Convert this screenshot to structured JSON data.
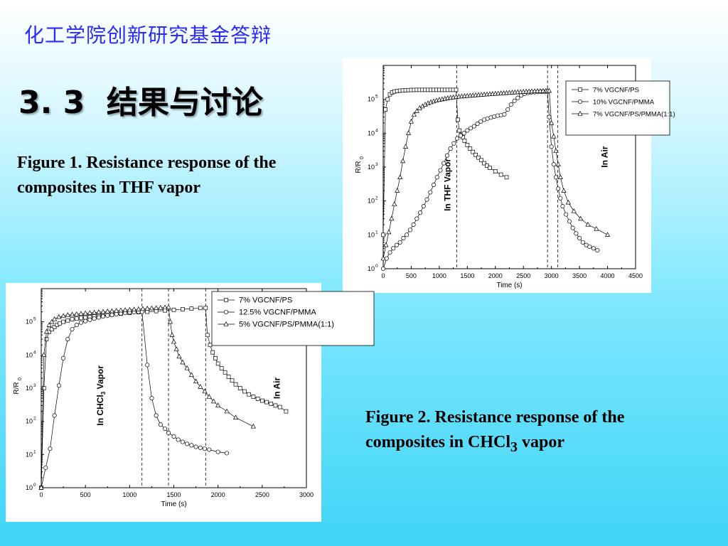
{
  "slide": {
    "header": "化工学院创新研究基金答辩",
    "section_number": "3. 3",
    "section_title": "结果与讨论"
  },
  "captions": {
    "figure1_prefix": "Figure 1. Resistance response of the composites in THF vapor",
    "figure2_prefix": "Figure 2. Resistance response of the composites in CHCl",
    "figure2_sub": "3",
    "figure2_suffix": " vapor"
  },
  "chart_data": [
    {
      "type": "line",
      "xlabel": "Time (s)",
      "ylabel_main": "R/R",
      "ylabel_sub": "0",
      "yscale": "log",
      "xlim": [
        0,
        4500
      ],
      "ylim": [
        1,
        1000000
      ],
      "xticks": [
        0,
        500,
        1000,
        1500,
        2000,
        2500,
        3000,
        3500,
        4000,
        4500
      ],
      "yticks": [
        1,
        10,
        100,
        1000,
        10000,
        100000
      ],
      "ytick_exps": [
        "0",
        "1",
        "2",
        "3",
        "4",
        "5"
      ],
      "vlines": [
        1310,
        2930,
        3110
      ],
      "annotations": [
        {
          "text": "In THF Vapor",
          "x": 1200,
          "y": 300
        },
        {
          "text": "In Air",
          "x": 4000,
          "y": 2000
        }
      ],
      "legend_position": "top-right",
      "series": [
        {
          "name": "7% VGCNF/PS",
          "marker": "square",
          "x": [
            0,
            40,
            80,
            120,
            160,
            200,
            250,
            300,
            350,
            400,
            450,
            500,
            550,
            600,
            650,
            700,
            750,
            800,
            850,
            900,
            950,
            1000,
            1050,
            1100,
            1150,
            1200,
            1250,
            1300,
            1330,
            1360,
            1390,
            1420,
            1450,
            1500,
            1550,
            1600,
            1650,
            1700,
            1750,
            1800,
            1850,
            1900,
            2000,
            2100,
            2200
          ],
          "y": [
            10,
            50000,
            100000,
            140000,
            160000,
            170000,
            175000,
            180000,
            182000,
            185000,
            187000,
            188000,
            189000,
            190000,
            190000,
            190000,
            190000,
            190000,
            190000,
            190000,
            190000,
            190000,
            190000,
            190000,
            190000,
            190000,
            190000,
            190000,
            25000,
            12000,
            9000,
            7500,
            6000,
            4500,
            3500,
            2800,
            2300,
            1900,
            1600,
            1300,
            1100,
            950,
            750,
            600,
            500
          ]
        },
        {
          "name": "10% VGCNF/PMMA",
          "marker": "circle",
          "x": [
            0,
            60,
            120,
            180,
            240,
            300,
            360,
            420,
            480,
            540,
            600,
            660,
            720,
            780,
            840,
            900,
            960,
            1020,
            1080,
            1140,
            1200,
            1260,
            1320,
            1380,
            1440,
            1500,
            1560,
            1620,
            1680,
            1740,
            1800,
            1860,
            1920,
            1980,
            2040,
            2100,
            2160,
            2220,
            2280,
            2340,
            2400,
            2460,
            2520,
            2580,
            2640,
            2700,
            2760,
            2820,
            2880,
            2930,
            2960,
            3000,
            3040,
            3080,
            3120,
            3160,
            3200,
            3260,
            3320,
            3380,
            3440,
            3500,
            3560,
            3620,
            3680,
            3750,
            3820
          ],
          "y": [
            1,
            2,
            3,
            4,
            5,
            6,
            8,
            10,
            14,
            20,
            30,
            45,
            70,
            110,
            180,
            300,
            500,
            800,
            1300,
            2200,
            3500,
            5000,
            7000,
            8500,
            10000,
            12000,
            14000,
            16000,
            19000,
            22000,
            25000,
            27000,
            29000,
            31000,
            33000,
            34000,
            36000,
            50000,
            70000,
            90000,
            110000,
            130000,
            145000,
            155000,
            160000,
            163000,
            165000,
            166000,
            167000,
            168000,
            30000,
            4000,
            1200,
            500,
            230,
            120,
            70,
            40,
            25,
            16,
            11,
            8,
            6,
            5,
            4.5,
            4,
            3.5
          ]
        },
        {
          "name": "7% VGCNF/PS/PMMA(1:1)",
          "marker": "triangle",
          "x": [
            0,
            50,
            100,
            150,
            200,
            250,
            300,
            350,
            400,
            450,
            500,
            550,
            600,
            650,
            700,
            750,
            800,
            850,
            900,
            950,
            1000,
            1050,
            1100,
            1150,
            1200,
            1250,
            1300,
            1350,
            1400,
            1450,
            1500,
            1550,
            1600,
            1650,
            1700,
            1750,
            1800,
            1850,
            1900,
            1950,
            2000,
            2050,
            2100,
            2150,
            2200,
            2250,
            2300,
            2350,
            2400,
            2450,
            2500,
            2550,
            2600,
            2650,
            2700,
            2750,
            2800,
            2850,
            2900,
            2930,
            2960,
            3000,
            3040,
            3080,
            3120,
            3160,
            3220,
            3300,
            3400,
            3520,
            3650,
            3800,
            4000
          ],
          "y": [
            2,
            5,
            12,
            30,
            80,
            200,
            500,
            1500,
            4000,
            10000,
            22000,
            35000,
            45000,
            55000,
            62000,
            70000,
            76000,
            82000,
            87000,
            92000,
            96000,
            100000,
            104000,
            108000,
            111000,
            114000,
            117000,
            120000,
            122000,
            124000,
            126000,
            128000,
            130000,
            132000,
            134000,
            136000,
            138000,
            140000,
            142000,
            144000,
            146000,
            148000,
            150000,
            152000,
            154000,
            156000,
            158000,
            160000,
            162000,
            164000,
            166000,
            168000,
            170000,
            172000,
            173000,
            174000,
            175000,
            176000,
            177000,
            178000,
            178000,
            20000,
            8000,
            3000,
            1200,
            500,
            200,
            90,
            50,
            30,
            20,
            15,
            10
          ]
        }
      ]
    },
    {
      "type": "line",
      "xlabel": "Time (s)",
      "ylabel_main": "R/R",
      "ylabel_sub": "0",
      "yscale": "log",
      "xlim": [
        0,
        3000
      ],
      "ylim": [
        1,
        1000000
      ],
      "xticks": [
        0,
        500,
        1000,
        1500,
        2000,
        2500,
        3000
      ],
      "yticks": [
        1,
        10,
        100,
        1000,
        10000,
        100000
      ],
      "ytick_exps": [
        "0",
        "1",
        "2",
        "3",
        "4",
        "5"
      ],
      "vlines": [
        1140,
        1440,
        1860
      ],
      "annotations": [
        {
          "text": "In CHCl",
          "sub": "3",
          "after": " Vapor",
          "x": 700,
          "y": 600
        },
        {
          "text": "In Air",
          "x": 2700,
          "y": 1000
        }
      ],
      "legend_position": "top-right",
      "series": [
        {
          "name": "7% VGCNF/PS",
          "marker": "square",
          "x": [
            0,
            30,
            60,
            90,
            120,
            150,
            180,
            210,
            250,
            300,
            350,
            400,
            450,
            500,
            550,
            600,
            650,
            700,
            800,
            900,
            1000,
            1100,
            1200,
            1300,
            1400,
            1500,
            1600,
            1700,
            1800,
            1860,
            1880,
            1910,
            1940,
            1970,
            2000,
            2040,
            2080,
            2120,
            2160,
            2200,
            2250,
            2300,
            2350,
            2400,
            2450,
            2500,
            2550,
            2600,
            2650,
            2700,
            2770
          ],
          "y": [
            1,
            1000,
            30000,
            50000,
            60000,
            70000,
            80000,
            90000,
            100000,
            110000,
            120000,
            125000,
            130000,
            135000,
            140000,
            145000,
            150000,
            155000,
            165000,
            175000,
            185000,
            195000,
            200000,
            210000,
            220000,
            230000,
            240000,
            250000,
            260000,
            260000,
            40000,
            20000,
            12000,
            8000,
            5500,
            4000,
            3000,
            2200,
            1700,
            1300,
            1000,
            800,
            650,
            550,
            480,
            420,
            380,
            340,
            300,
            270,
            200
          ]
        },
        {
          "name": "12.5% VGCNF/PMMA",
          "marker": "circle",
          "x": [
            0,
            50,
            100,
            150,
            200,
            250,
            300,
            350,
            400,
            450,
            500,
            550,
            600,
            650,
            700,
            750,
            800,
            850,
            900,
            950,
            1000,
            1050,
            1100,
            1140,
            1200,
            1250,
            1300,
            1350,
            1400,
            1440,
            1500,
            1550,
            1600,
            1650,
            1700,
            1750,
            1800,
            1850,
            1900,
            2000,
            2100
          ],
          "y": [
            1,
            4,
            15,
            150,
            1200,
            8000,
            30000,
            60000,
            80000,
            95000,
            105000,
            115000,
            125000,
            135000,
            145000,
            155000,
            162000,
            170000,
            178000,
            185000,
            192000,
            197000,
            200000,
            200000,
            5000,
            500,
            150,
            80,
            60,
            45,
            35,
            28,
            24,
            21,
            19,
            17,
            16,
            15,
            14,
            12,
            11
          ]
        },
        {
          "name": "5% VGCNF/PS/PMMA(1:1)",
          "marker": "triangle",
          "x": [
            0,
            30,
            60,
            90,
            120,
            150,
            200,
            250,
            300,
            350,
            400,
            450,
            500,
            550,
            600,
            650,
            700,
            750,
            800,
            850,
            900,
            950,
            1000,
            1050,
            1100,
            1150,
            1200,
            1250,
            1300,
            1350,
            1400,
            1440,
            1460,
            1480,
            1500,
            1530,
            1560,
            1600,
            1650,
            1700,
            1750,
            1800,
            1850,
            1900,
            1950,
            2000,
            2100,
            2200,
            2400
          ],
          "y": [
            1,
            10000,
            50000,
            80000,
            100000,
            120000,
            140000,
            150000,
            160000,
            165000,
            170000,
            175000,
            180000,
            185000,
            190000,
            195000,
            200000,
            205000,
            210000,
            215000,
            220000,
            225000,
            230000,
            235000,
            240000,
            245000,
            250000,
            255000,
            260000,
            265000,
            270000,
            275000,
            100000,
            40000,
            25000,
            15000,
            9000,
            6000,
            4000,
            2500,
            1600,
            1100,
            800,
            550,
            400,
            300,
            200,
            130,
            70
          ]
        }
      ]
    }
  ]
}
